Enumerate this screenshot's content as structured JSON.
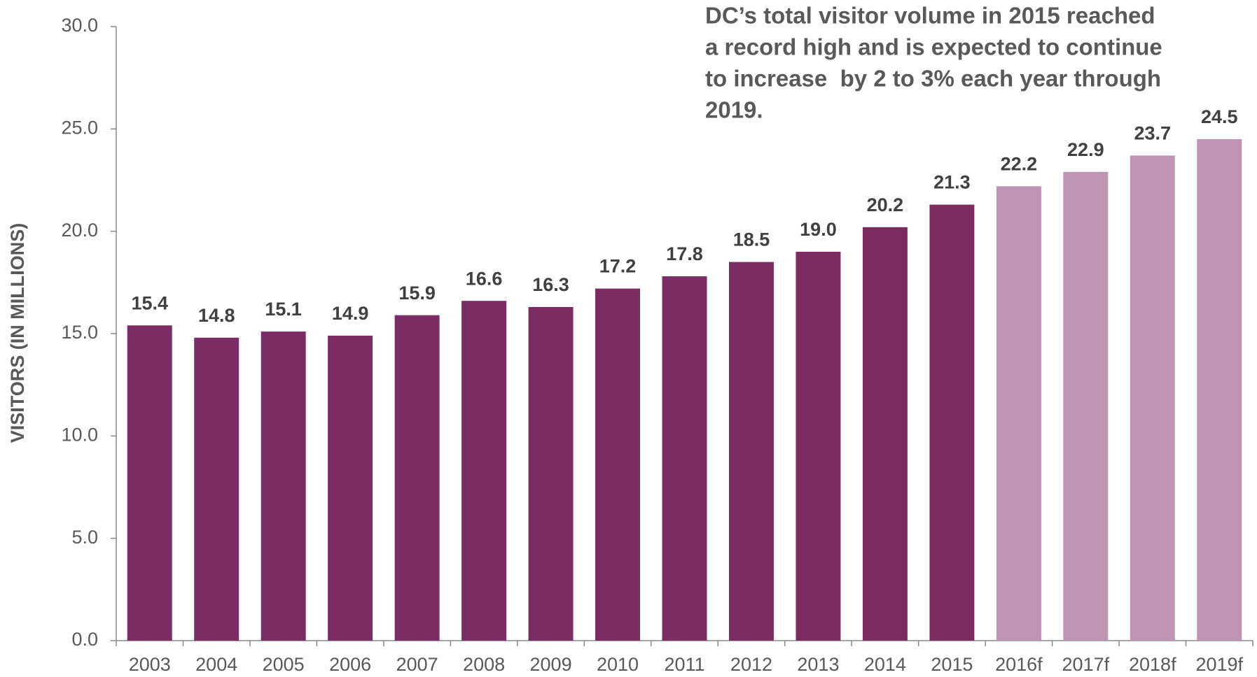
{
  "chart_data": {
    "type": "bar",
    "ylabel": "VISITORS (IN MILLIONS)",
    "annotation": [
      "DC’s total visitor volume in 2015 reached",
      "a record high and is expected to continue",
      "to increase  by 2 to 3% each year through",
      "2019."
    ],
    "categories": [
      "2003",
      "2004",
      "2005",
      "2006",
      "2007",
      "2008",
      "2009",
      "2010",
      "2011",
      "2012",
      "2013",
      "2014",
      "2015",
      "2016f",
      "2017f",
      "2018f",
      "2019f"
    ],
    "values": [
      15.4,
      14.8,
      15.1,
      14.9,
      15.9,
      16.6,
      16.3,
      17.2,
      17.8,
      18.5,
      19.0,
      20.2,
      21.3,
      22.2,
      22.9,
      23.7,
      24.5
    ],
    "value_labels": [
      "15.4",
      "14.8",
      "15.1",
      "14.9",
      "15.9",
      "16.6",
      "16.3",
      "17.2",
      "17.8",
      "18.5",
      "19.0",
      "20.2",
      "21.3",
      "22.2",
      "22.9",
      "23.7",
      "24.5"
    ],
    "colors": [
      "#7b2d63",
      "#7b2d63",
      "#7b2d63",
      "#7b2d63",
      "#7b2d63",
      "#7b2d63",
      "#7b2d63",
      "#7b2d63",
      "#7b2d63",
      "#7b2d63",
      "#7b2d63",
      "#7b2d63",
      "#7b2d63",
      "#bf93b3",
      "#bf93b3",
      "#bf93b3",
      "#bf93b3"
    ],
    "ylim": [
      0,
      30
    ],
    "yticks": [
      {
        "value": 0,
        "label": "0.0"
      },
      {
        "value": 5,
        "label": "5.0"
      },
      {
        "value": 10,
        "label": "10.0"
      },
      {
        "value": 15,
        "label": "15.0"
      },
      {
        "value": 20,
        "label": "20.0"
      },
      {
        "value": 25,
        "label": "25.0"
      },
      {
        "value": 30,
        "label": "30.0"
      }
    ],
    "grid": false
  }
}
